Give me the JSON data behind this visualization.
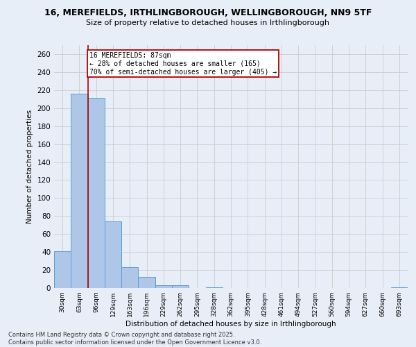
{
  "title": "16, MEREFIELDS, IRTHLINGBOROUGH, WELLINGBOROUGH, NN9 5TF",
  "subtitle": "Size of property relative to detached houses in Irthlingborough",
  "xlabel": "Distribution of detached houses by size in Irthlingborough",
  "ylabel": "Number of detached properties",
  "footer_line1": "Contains HM Land Registry data © Crown copyright and database right 2025.",
  "footer_line2": "Contains public sector information licensed under the Open Government Licence v3.0.",
  "categories": [
    "30sqm",
    "63sqm",
    "96sqm",
    "129sqm",
    "163sqm",
    "196sqm",
    "229sqm",
    "262sqm",
    "295sqm",
    "328sqm",
    "362sqm",
    "395sqm",
    "428sqm",
    "461sqm",
    "494sqm",
    "527sqm",
    "560sqm",
    "594sqm",
    "627sqm",
    "660sqm",
    "693sqm"
  ],
  "values": [
    41,
    216,
    211,
    74,
    23,
    12,
    3,
    3,
    0,
    1,
    0,
    0,
    0,
    0,
    0,
    0,
    0,
    0,
    0,
    0,
    1
  ],
  "bar_color": "#aec6e8",
  "bar_edge_color": "#5a9fd4",
  "grid_color": "#cccccc",
  "background_color": "#e8eef8",
  "vline_x": 1.5,
  "vline_color": "#aa0000",
  "annotation_text": "16 MEREFIELDS: 87sqm\n← 28% of detached houses are smaller (165)\n70% of semi-detached houses are larger (405) →",
  "annotation_box_color": "#ffffff",
  "annotation_box_edge": "#aa0000",
  "ylim": [
    0,
    270
  ],
  "yticks": [
    0,
    20,
    40,
    60,
    80,
    100,
    120,
    140,
    160,
    180,
    200,
    220,
    240,
    260
  ]
}
